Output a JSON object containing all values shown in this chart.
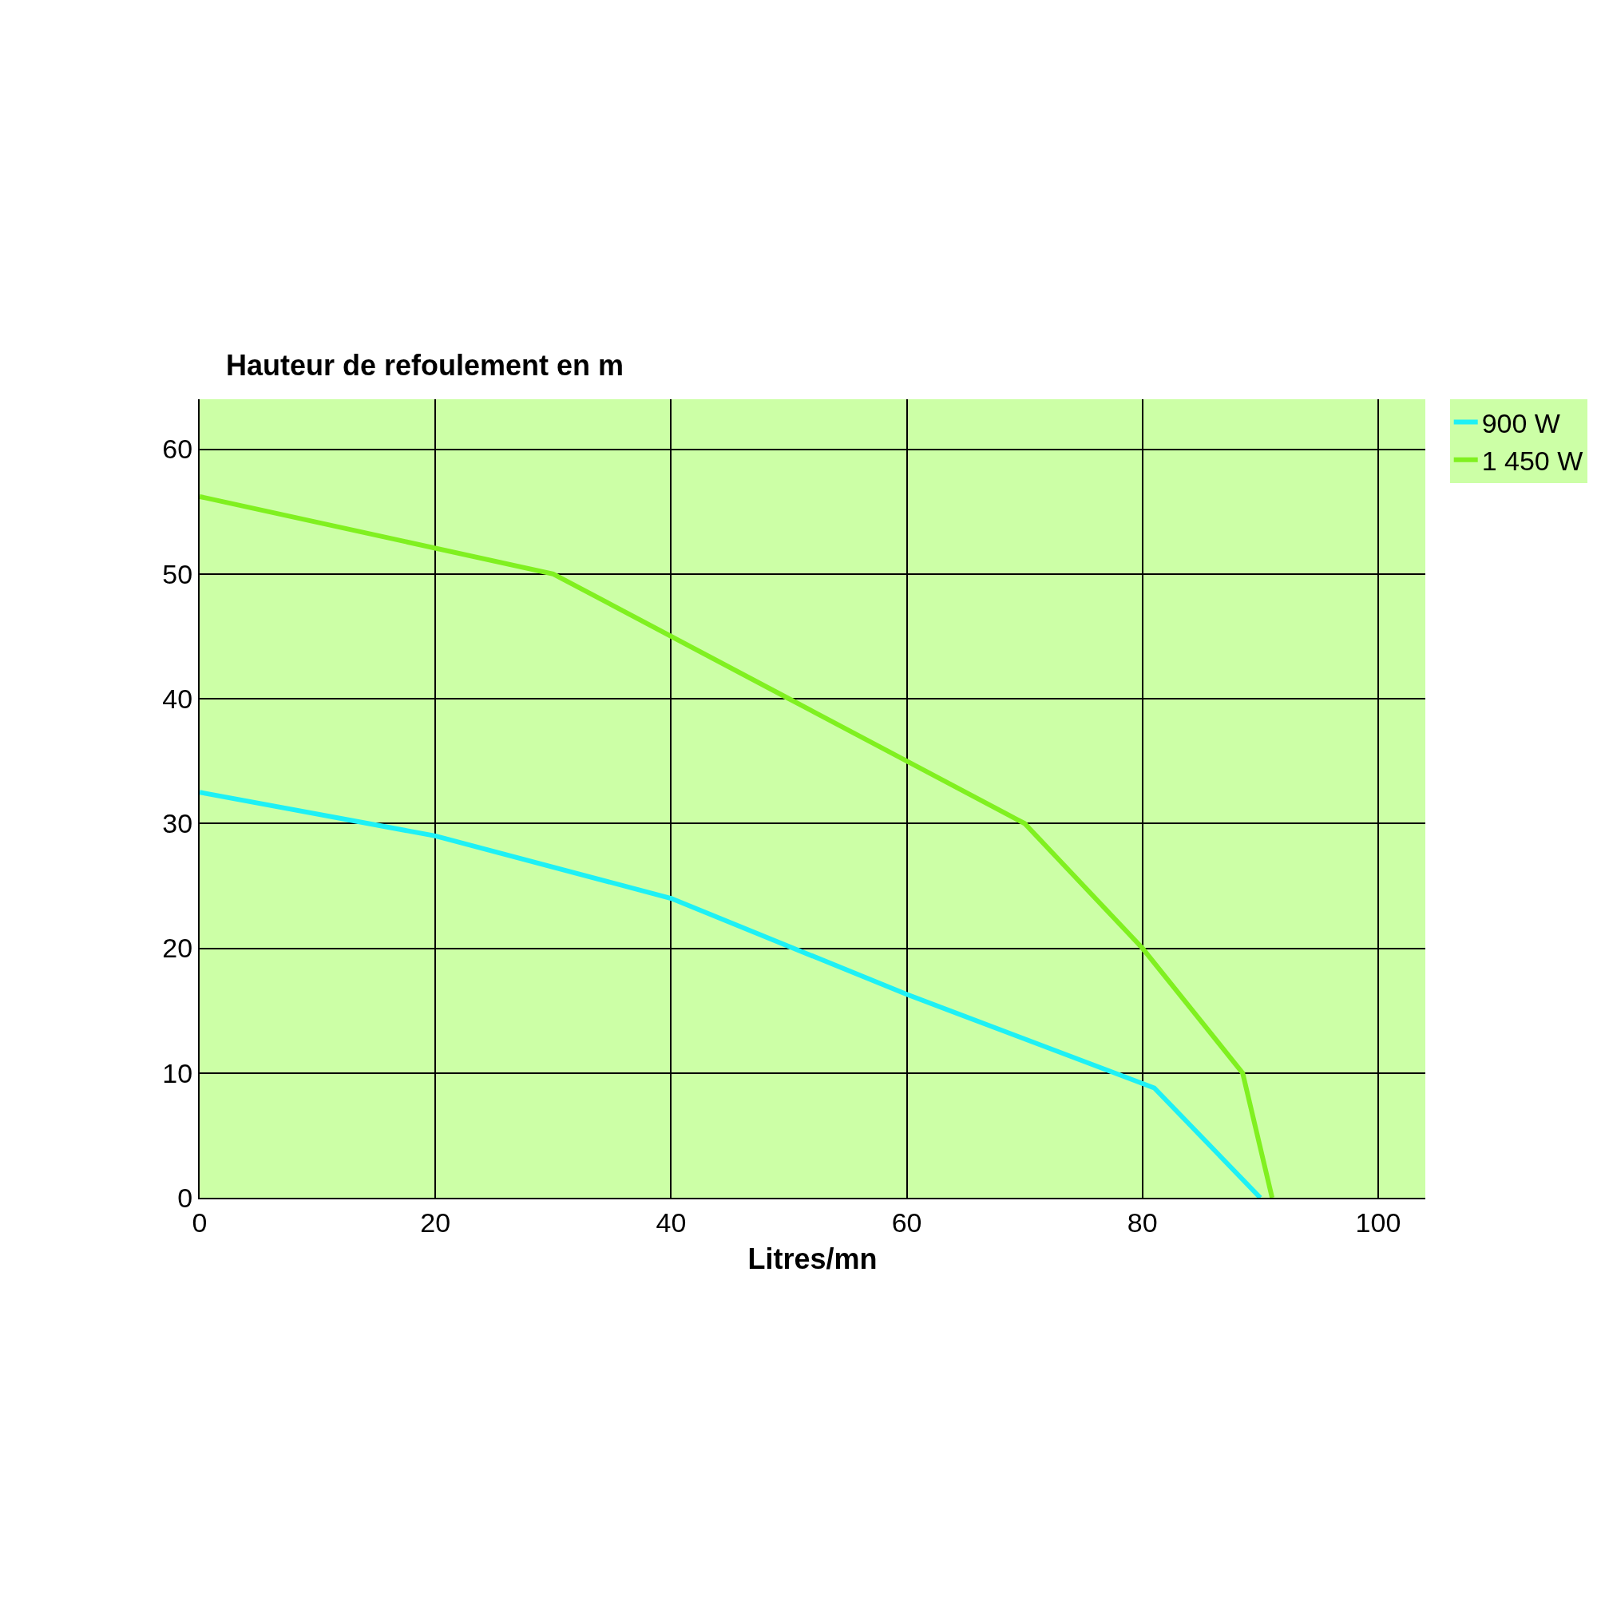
{
  "chart_data": {
    "type": "line",
    "xlabel": "Litres/mn",
    "ylabel": "Hauteur de refoulement en m",
    "xlim": [
      0,
      104
    ],
    "ylim": [
      0,
      64
    ],
    "xticks": [
      0,
      20,
      40,
      60,
      80,
      100
    ],
    "yticks": [
      0,
      10,
      20,
      30,
      40,
      50,
      60
    ],
    "grid": true,
    "legend": "top right",
    "marker": "none",
    "line_style": "solid",
    "series": [
      {
        "name": "900 W",
        "color": "#1ef0f5",
        "x": [
          0,
          20,
          40,
          60,
          81,
          90
        ],
        "values": [
          32.5,
          29,
          24,
          16.3,
          8.8,
          0
        ]
      },
      {
        "name": "1 450 W",
        "color": "#80f020",
        "x": [
          0,
          30,
          50,
          60,
          70,
          80,
          88.5,
          91
        ],
        "values": [
          56.2,
          50,
          40,
          35,
          30,
          20,
          10,
          0
        ]
      }
    ]
  }
}
